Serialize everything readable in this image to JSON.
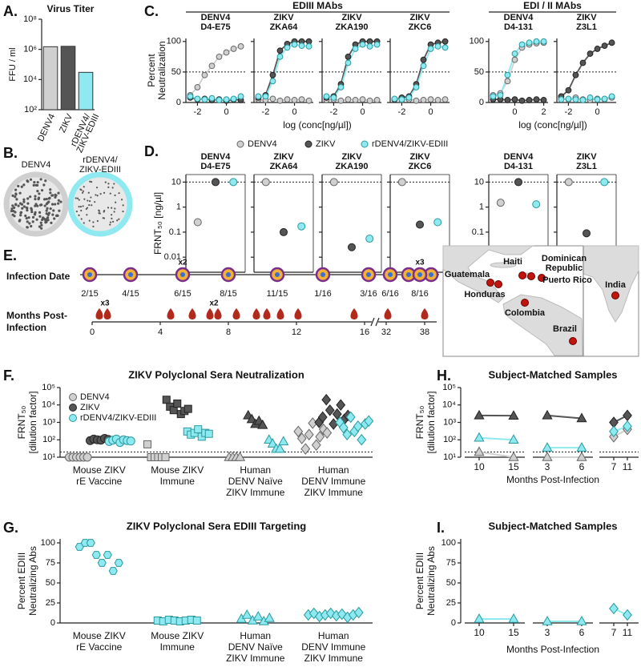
{
  "panel_labels": [
    "A.",
    "B.",
    "C.",
    "D.",
    "E.",
    "F.",
    "G.",
    "H.",
    "I."
  ],
  "panel_b": {
    "images": [
      {
        "label": [
          "DENV4"
        ]
      },
      {
        "label": [
          "rDENV4/",
          "ZIKV-EDIII"
        ]
      }
    ]
  },
  "panel_c": {
    "groups": [
      "EDIII MAbs",
      "EDI / II MAbs"
    ],
    "y_label": [
      "Percent",
      "Neutralization"
    ],
    "x_label": "log (conc[ng/µl])",
    "legend": [
      {
        "name": "DENV4",
        "color": "#d0d0d0",
        "edge": "#666666"
      },
      {
        "name": "ZIKV",
        "color": "#555555",
        "edge": "#222222"
      },
      {
        "name": "rDENV4/ZIKV-EDIII",
        "color": "#8eeaf0",
        "edge": "#2a9aa0"
      }
    ]
  },
  "panel_e": {
    "infection_label": "Infection Date",
    "infection_dates": [
      "2/15",
      "4/15",
      "6/15",
      "8/15",
      "11/15",
      "1/16",
      "3/16",
      "6/16",
      "8/16"
    ],
    "infection_multiples": [
      "x2",
      "x3"
    ],
    "months_label": [
      "Months Post-",
      "Infection"
    ],
    "months": [
      0,
      4,
      8,
      12,
      16,
      32,
      38
    ],
    "months_multiples": [
      "x3",
      "x2"
    ],
    "map_labels": {
      "guatemala": "Guatemala",
      "honduras": "Honduras",
      "haiti": "Haiti",
      "dominican": [
        "Dominican",
        "Republic"
      ],
      "puerto_rico": "Puerto Rico",
      "colombia": "Colombia",
      "brazil": "Brazil",
      "india": "India"
    }
  },
  "chart_data": [
    {
      "type": "bar",
      "title": "Virus Titer",
      "y_label": "FFU / ml",
      "log": true,
      "categories": [
        [
          "DENV4"
        ],
        [
          "ZIKV"
        ],
        [
          "rDENV4/",
          "ZIKV-EDIII"
        ]
      ],
      "values": [
        1500000,
        1600000,
        30000
      ],
      "colors": [
        "#d0d0d0",
        "#555555",
        "#8eeaf0"
      ],
      "ylim": [
        100,
        100000000
      ],
      "yticks": [
        {
          "value": 100,
          "label": "10²"
        },
        {
          "value": 10000,
          "label": "10⁴"
        },
        {
          "value": 1000000,
          "label": "10⁶"
        },
        {
          "value": 100000000,
          "label": "10⁸"
        }
      ]
    },
    {
      "type": "line",
      "title": [
        "DENV4",
        "D4-E75"
      ],
      "x": [
        -2.5,
        -2,
        -1.5,
        -1,
        -0.5,
        0,
        0.5,
        1
      ],
      "xlim": [
        -2.8,
        1.3
      ],
      "xticks": [
        -2,
        0
      ],
      "ylim": [
        0,
        105
      ],
      "yticks": [
        0,
        50,
        100
      ],
      "reference_line": 50,
      "series": [
        {
          "values": [
            12,
            25,
            45,
            60,
            75,
            82,
            88,
            92
          ]
        },
        {
          "values": [
            8,
            5,
            6,
            4,
            5,
            3,
            5,
            4
          ]
        },
        {
          "values": [
            10,
            6,
            5,
            7,
            4,
            5,
            6,
            10
          ]
        }
      ]
    },
    {
      "type": "line",
      "title": [
        "ZIKV",
        "ZKA64"
      ],
      "x": [
        -2.5,
        -2,
        -1.5,
        -1,
        -0.5,
        0,
        0.5,
        1
      ],
      "xlim": [
        -2.8,
        1.3
      ],
      "xticks": [
        -2,
        0
      ],
      "ylim": [
        0,
        105
      ],
      "yticks": [
        0,
        50,
        100
      ],
      "reference_line": 50,
      "series": [
        {
          "values": [
            5,
            4,
            6,
            3,
            5,
            4,
            5,
            3
          ]
        },
        {
          "values": [
            8,
            12,
            45,
            85,
            96,
            100,
            100,
            100
          ]
        },
        {
          "values": [
            10,
            10,
            35,
            75,
            90,
            95,
            93,
            92
          ]
        }
      ]
    },
    {
      "type": "line",
      "title": [
        "ZIKV",
        "ZKA190"
      ],
      "x": [
        -2.5,
        -2,
        -1.5,
        -1,
        -0.5,
        0,
        0.5,
        1
      ],
      "xlim": [
        -2.8,
        1.3
      ],
      "xticks": [
        -2,
        0
      ],
      "ylim": [
        0,
        105
      ],
      "yticks": [
        0,
        50,
        100
      ],
      "reference_line": 50,
      "series": [
        {
          "values": [
            4,
            5,
            3,
            5,
            4,
            5,
            3,
            4
          ]
        },
        {
          "values": [
            8,
            10,
            30,
            75,
            95,
            100,
            100,
            100
          ]
        },
        {
          "values": [
            10,
            8,
            25,
            65,
            88,
            95,
            92,
            95
          ]
        }
      ]
    },
    {
      "type": "line",
      "title": [
        "ZIKV",
        "ZKC6"
      ],
      "x": [
        -2.5,
        -2,
        -1.5,
        -1,
        -0.5,
        0,
        0.5,
        1
      ],
      "xlim": [
        -2.8,
        1.3
      ],
      "xticks": [
        -2,
        0
      ],
      "ylim": [
        0,
        105
      ],
      "yticks": [
        0,
        50,
        100
      ],
      "reference_line": 50,
      "series": [
        {
          "values": [
            5,
            4,
            5,
            3,
            4,
            5,
            4,
            5
          ]
        },
        {
          "values": [
            5,
            8,
            10,
            30,
            70,
            95,
            98,
            100
          ]
        },
        {
          "values": [
            6,
            5,
            8,
            25,
            60,
            88,
            92,
            90
          ]
        }
      ]
    },
    {
      "type": "line",
      "title": [
        "DENV4",
        "D4-131"
      ],
      "x": [
        -1.5,
        -1,
        -0.5,
        0,
        0.5,
        1,
        1.5,
        2
      ],
      "xlim": [
        -1.8,
        2.3
      ],
      "xticks": [
        0,
        2
      ],
      "ylim": [
        0,
        105
      ],
      "yticks": [
        0,
        50,
        100
      ],
      "reference_line": 50,
      "series": [
        {
          "values": [
            12,
            15,
            35,
            70,
            90,
            95,
            97,
            98
          ]
        },
        {
          "values": [
            5,
            5,
            4,
            5,
            3,
            4,
            5,
            4
          ]
        },
        {
          "values": [
            10,
            12,
            45,
            80,
            95,
            98,
            100,
            100
          ]
        }
      ]
    },
    {
      "type": "line",
      "title": [
        "ZIKV",
        "Z3L1"
      ],
      "x": [
        -2.5,
        -2,
        -1.5,
        -1,
        -0.5,
        0,
        0.5,
        1
      ],
      "xlim": [
        -2.8,
        1.3
      ],
      "xticks": [
        -2,
        0
      ],
      "ylim": [
        0,
        105
      ],
      "yticks": [
        0,
        50,
        100
      ],
      "reference_line": 50,
      "series": [
        {
          "values": [
            6,
            5,
            8,
            5,
            4,
            6,
            5,
            8
          ]
        },
        {
          "values": [
            10,
            20,
            45,
            65,
            80,
            88,
            93,
            98
          ]
        },
        {
          "values": [
            5,
            6,
            5,
            4,
            8,
            5,
            6,
            10
          ]
        }
      ]
    },
    {
      "type": "dot",
      "title": [
        "DENV4",
        "D4-E75"
      ],
      "y_label": "FRNT₅₀ [ng/µl]",
      "log": true,
      "ylim": [
        0.0025,
        20
      ],
      "yticks": [
        0.01,
        0.1,
        1,
        10
      ],
      "reference_line": 10,
      "values": [
        0.25,
        10,
        10
      ]
    },
    {
      "type": "dot",
      "title": [
        "ZIKV",
        "ZKA64"
      ],
      "log": true,
      "ylim": [
        0.0025,
        20
      ],
      "yticks": [
        0.01,
        0.1,
        1,
        10
      ],
      "reference_line": 10,
      "values": [
        10,
        0.1,
        0.17
      ]
    },
    {
      "type": "dot",
      "title": [
        "ZIKV",
        "ZKA190"
      ],
      "log": true,
      "ylim": [
        0.0025,
        20
      ],
      "yticks": [
        0.01,
        0.1,
        1,
        10
      ],
      "reference_line": 10,
      "values": [
        10,
        0.025,
        0.055
      ]
    },
    {
      "type": "dot",
      "title": [
        "ZIKV",
        "ZKC6"
      ],
      "log": true,
      "ylim": [
        0.0025,
        20
      ],
      "yticks": [
        0.01,
        0.1,
        1,
        10
      ],
      "reference_line": 10,
      "values": [
        10,
        0.2,
        0.25
      ]
    },
    {
      "type": "dot",
      "title": [
        "DENV4",
        "D4-131"
      ],
      "log": true,
      "ylim": [
        0.0025,
        20
      ],
      "yticks": [
        0.01,
        0.1,
        1,
        10
      ],
      "reference_line": 10,
      "values": [
        1.5,
        10,
        1.3
      ]
    },
    {
      "type": "dot",
      "title": [
        "ZIKV",
        "Z3L1"
      ],
      "log": true,
      "ylim": [
        0.0025,
        20
      ],
      "yticks": [
        0.01,
        0.1,
        1,
        10
      ],
      "reference_line": 10,
      "values": [
        10,
        0.09,
        10
      ]
    },
    {
      "type": "strip",
      "title": "ZIKV Polyclonal Sera Neutralization",
      "y_label": [
        "FRNT₅₀",
        "[dilution factor]"
      ],
      "log": true,
      "categories": [
        [
          "Mouse ZIKV",
          "rE Vaccine"
        ],
        [
          "Mouse ZIKV",
          "Immune"
        ],
        [
          "Human",
          "DENV Naïve",
          "ZIKV Immune"
        ],
        [
          "Human",
          "DENV Immune",
          "ZIKV Immune"
        ]
      ],
      "markers": [
        "circle",
        "square",
        "triangle",
        "diamond"
      ],
      "ylim": [
        10,
        100000
      ],
      "yticks": [
        {
          "value": 10,
          "label": "10¹"
        },
        {
          "value": 100,
          "label": "10²"
        },
        {
          "value": 1000,
          "label": "10³"
        },
        {
          "value": 10000,
          "label": "10⁴"
        },
        {
          "value": 100000,
          "label": "10⁵"
        }
      ],
      "reference_line": 20,
      "series": [
        {
          "name": "DENV4",
          "color": "#d0d0d0",
          "edge": "#666666",
          "values": [
            [
              10,
              10,
              10,
              10,
              10,
              10
            ],
            [
              55,
              10,
              10,
              10,
              10,
              10
            ],
            [
              10,
              10,
              10,
              10
            ],
            [
              300,
              120,
              30,
              200,
              900,
              50,
              150,
              400,
              250
            ]
          ]
        },
        {
          "name": "ZIKV",
          "color": "#555555",
          "edge": "#222222",
          "values": [
            [
              90,
              110,
              100,
              95,
              120,
              105
            ],
            [
              20000,
              8000,
              5000,
              12000,
              3000,
              4500,
              6000
            ],
            [
              2500,
              1500,
              800,
              1200,
              700
            ],
            [
              1000,
              2000,
              20000,
              5000,
              800,
              3000,
              10000,
              1500,
              2500
            ]
          ]
        },
        {
          "name": "rDENV4/ZIKV-EDIII",
          "color": "#8eeaf0",
          "edge": "#2a9aa0",
          "values": [
            [
              80,
              95,
              110,
              70,
              100,
              90,
              85
            ],
            [
              300,
              200,
              250,
              400,
              150,
              250,
              220
            ],
            [
              100,
              60,
              30,
              30,
              80
            ],
            [
              1000,
              500,
              200,
              2000,
              300,
              600,
              100,
              800,
              1200
            ]
          ]
        }
      ]
    },
    {
      "type": "strip",
      "title": "ZIKV Polyclonal Sera EDIII Targeting",
      "y_label": [
        "Percent EDIII",
        "Neutralizing Abs"
      ],
      "categories": [
        [
          "Mouse ZIKV",
          "rE Vaccine"
        ],
        [
          "Mouse ZIKV",
          "Immune"
        ],
        [
          "Human",
          "DENV Naïve",
          "ZIKV Immune"
        ],
        [
          "Human",
          "DENV Immune",
          "ZIKV Immune"
        ]
      ],
      "markers": [
        "hexagon",
        "square",
        "triangle",
        "diamond"
      ],
      "ylim": [
        0,
        105
      ],
      "yticks": [
        0,
        25,
        50,
        75,
        100
      ],
      "series": [
        {
          "color": "#8eeaf0",
          "edge": "#2a9aa0",
          "values": [
            [
              95,
              100,
              100,
              85,
              75,
              85,
              65,
              75
            ],
            [
              3,
              2,
              4,
              3,
              2,
              3,
              4,
              3
            ],
            [
              5,
              10,
              3,
              8,
              2,
              6
            ],
            [
              10,
              12,
              8,
              10,
              12,
              9,
              11,
              7,
              10,
              13
            ]
          ]
        }
      ]
    },
    {
      "type": "paired",
      "title": "Subject-Matched Samples",
      "y_label": [
        "FRNT₅₀",
        "[dilution factor]"
      ],
      "x_label": "Months Post-Infection",
      "log": true,
      "x": [
        [
          10,
          15
        ],
        [
          3,
          6
        ],
        [
          7,
          11
        ]
      ],
      "markers": [
        "triangle",
        "triangle",
        "diamond"
      ],
      "ylim": [
        10,
        100000
      ],
      "yticks": [
        {
          "value": 10,
          "label": "10¹"
        },
        {
          "value": 100,
          "label": "10²"
        },
        {
          "value": 1000,
          "label": "10³"
        },
        {
          "value": 10000,
          "label": "10⁴"
        },
        {
          "value": 100000,
          "label": "10⁵"
        }
      ],
      "reference_line": 20,
      "series": [
        {
          "color": "#d0d0d0",
          "edge": "#666666",
          "values": [
            [
              20,
              10
            ],
            [
              10,
              10
            ],
            [
              150,
              400
            ]
          ]
        },
        {
          "color": "#555555",
          "edge": "#222222",
          "values": [
            [
              2500,
              2400
            ],
            [
              2500,
              1700
            ],
            [
              1000,
              2500
            ]
          ]
        },
        {
          "color": "#8eeaf0",
          "edge": "#2a9aa0",
          "values": [
            [
              130,
              100
            ],
            [
              35,
              35
            ],
            [
              300,
              600
            ]
          ]
        }
      ]
    },
    {
      "type": "paired",
      "title": "Subject-Matched Samples",
      "y_label": [
        "Percent EDIII",
        "Neutralizing Abs"
      ],
      "x_label": "Months Post-Infection",
      "x": [
        [
          10,
          15
        ],
        [
          3,
          6
        ],
        [
          7,
          11
        ]
      ],
      "markers": [
        "triangle",
        "triangle",
        "diamond"
      ],
      "ylim": [
        0,
        105
      ],
      "yticks": [
        0,
        25,
        50,
        75,
        100
      ],
      "series": [
        {
          "color": "#8eeaf0",
          "edge": "#2a9aa0",
          "values": [
            [
              5,
              5
            ],
            [
              2,
              2
            ],
            [
              18,
              10
            ]
          ]
        }
      ]
    }
  ]
}
